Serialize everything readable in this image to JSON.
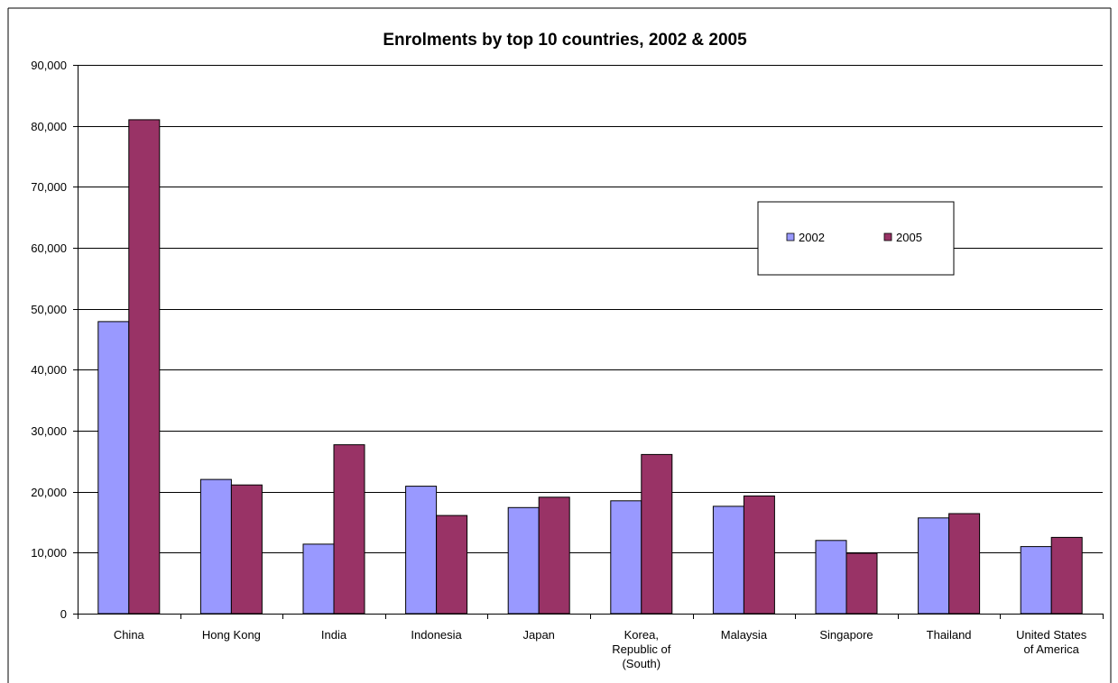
{
  "chart_data": {
    "type": "bar",
    "title": "Enrolments by top 10 countries, 2002 & 2005",
    "xlabel": "",
    "ylabel": "",
    "ylim": [
      0,
      90000
    ],
    "yticks": [
      0,
      10000,
      20000,
      30000,
      40000,
      50000,
      60000,
      70000,
      80000,
      90000
    ],
    "ytick_labels": [
      "0",
      "10,000",
      "20,000",
      "30,000",
      "40,000",
      "50,000",
      "60,000",
      "70,000",
      "80,000",
      "90,000"
    ],
    "grid": true,
    "legend_position": "right",
    "categories": [
      [
        "China"
      ],
      [
        "Hong Kong"
      ],
      [
        "India"
      ],
      [
        "Indonesia"
      ],
      [
        "Japan"
      ],
      [
        "Korea,",
        "Republic of",
        "(South)"
      ],
      [
        "Malaysia"
      ],
      [
        "Singapore"
      ],
      [
        "Thailand"
      ],
      [
        "United States",
        "of America"
      ]
    ],
    "series": [
      {
        "name": "2002",
        "color": "#9999ff",
        "values": [
          47900,
          22000,
          11400,
          20900,
          17400,
          18500,
          17600,
          12000,
          15700,
          11000
        ]
      },
      {
        "name": "2005",
        "color": "#993366",
        "values": [
          81000,
          21100,
          27700,
          16100,
          19100,
          26100,
          19300,
          9900,
          16400,
          12500
        ]
      }
    ]
  }
}
